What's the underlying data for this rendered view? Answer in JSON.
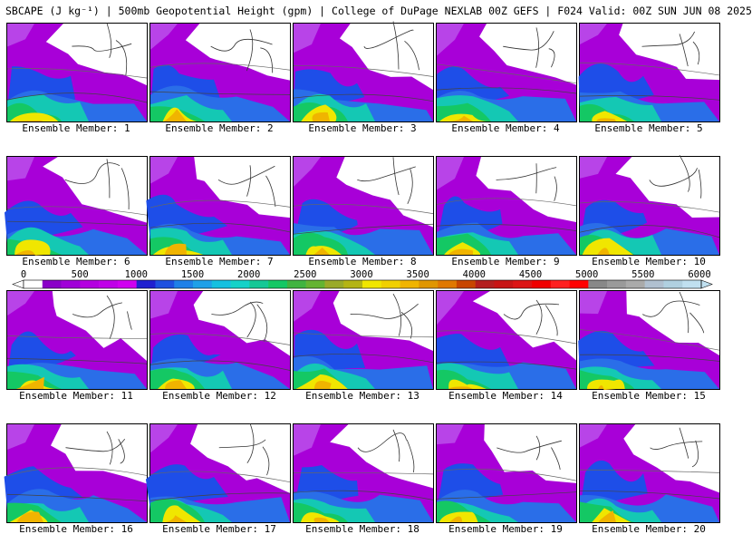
{
  "header": {
    "title": "SBCAPE (J kg⁻¹) | 500mb Geopotential Height (gpm) | College of DuPage NEXLAB 00Z GEFS | F024 Valid: 00Z SUN JUN 08 2025"
  },
  "members": [
    {
      "label": "Ensemble Member: 1"
    },
    {
      "label": "Ensemble Member: 2"
    },
    {
      "label": "Ensemble Member: 3"
    },
    {
      "label": "Ensemble Member: 4"
    },
    {
      "label": "Ensemble Member: 5"
    },
    {
      "label": "Ensemble Member: 6"
    },
    {
      "label": "Ensemble Member: 7"
    },
    {
      "label": "Ensemble Member: 8"
    },
    {
      "label": "Ensemble Member: 9"
    },
    {
      "label": "Ensemble Member: 10"
    },
    {
      "label": "Ensemble Member: 11"
    },
    {
      "label": "Ensemble Member: 12"
    },
    {
      "label": "Ensemble Member: 13"
    },
    {
      "label": "Ensemble Member: 14"
    },
    {
      "label": "Ensemble Member: 15"
    },
    {
      "label": "Ensemble Member: 16"
    },
    {
      "label": "Ensemble Member: 17"
    },
    {
      "label": "Ensemble Member: 18"
    },
    {
      "label": "Ensemble Member: 19"
    },
    {
      "label": "Ensemble Member: 20"
    }
  ],
  "colorbar": {
    "ticks": [
      "0",
      "500",
      "1000",
      "1500",
      "2000",
      "2500",
      "3000",
      "3500",
      "4000",
      "4500",
      "5000",
      "5500",
      "6000"
    ],
    "colors": {
      "0": "#ffffff",
      "250": "#9400d3",
      "500": "#b000e0",
      "1000": "#2020d0",
      "1250": "#1e6ee8",
      "1500": "#1eb4e8",
      "1750": "#14d2c8",
      "2000": "#14c864",
      "2250": "#64b432",
      "2500": "#9aaa28",
      "2750": "#c8c800",
      "3000": "#f0e600",
      "3500": "#f0b400",
      "3750": "#e07800",
      "4000": "#b41e1e",
      "4500": "#dc1414",
      "5000": "#ff0000",
      "5500": "#888888",
      "6000": "#b0d0e0"
    }
  }
}
